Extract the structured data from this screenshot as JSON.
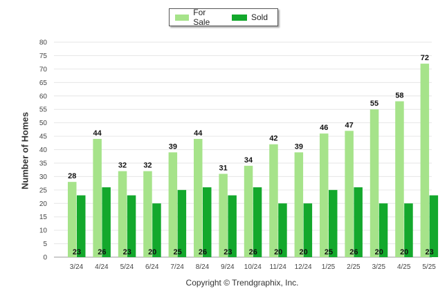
{
  "chart_data": {
    "type": "bar",
    "categories": [
      "3/24",
      "4/24",
      "5/24",
      "6/24",
      "7/24",
      "8/24",
      "9/24",
      "10/24",
      "11/24",
      "12/24",
      "1/25",
      "2/25",
      "3/25",
      "4/25",
      "5/25"
    ],
    "series": [
      {
        "name": "For Sale",
        "color": "#a6e38a",
        "values": [
          28,
          44,
          32,
          32,
          39,
          44,
          31,
          34,
          42,
          39,
          46,
          47,
          55,
          58,
          72
        ]
      },
      {
        "name": "Sold",
        "color": "#13a82c",
        "values": [
          23,
          26,
          23,
          20,
          25,
          26,
          23,
          26,
          20,
          20,
          25,
          26,
          20,
          20,
          23
        ]
      }
    ],
    "ylabel": "Number of Homes",
    "ylim": [
      0,
      80
    ],
    "yticks": [
      0,
      5,
      10,
      15,
      20,
      25,
      30,
      35,
      40,
      45,
      50,
      55,
      60,
      65,
      70,
      75,
      80
    ],
    "grid": true,
    "legend_position": "top-center"
  },
  "footer": {
    "copyright": "Copyright © Trendgraphix, Inc."
  }
}
